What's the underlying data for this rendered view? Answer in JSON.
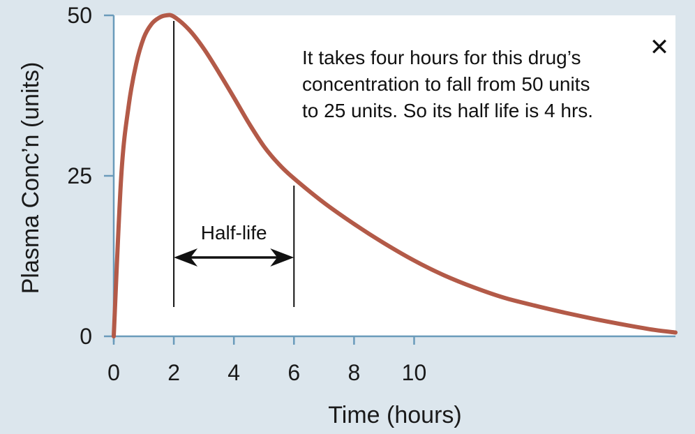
{
  "chart_data": {
    "type": "line",
    "title": "",
    "xlabel": "Time (hours)",
    "ylabel": "Plasma Conc’n (units)",
    "xlim": [
      0,
      18.7
    ],
    "ylim": [
      0,
      50
    ],
    "x_ticks": [
      0,
      2,
      4,
      6,
      8,
      10
    ],
    "x_tick_labels": [
      "0",
      "2",
      "4",
      "6",
      "8",
      "10"
    ],
    "y_ticks": [
      0,
      25,
      50
    ],
    "y_tick_labels": [
      "0",
      "25",
      "50"
    ],
    "grid": false,
    "series": [
      {
        "color": "#b35a48",
        "x": [
          0,
          0.25,
          0.5,
          0.75,
          1.0,
          1.25,
          1.5,
          1.75,
          2.0,
          2.5,
          3.0,
          3.5,
          4.0,
          4.5,
          5.0,
          5.5,
          6.0,
          7.0,
          8.0,
          9.0,
          10.0,
          11.0,
          12.0,
          13.0,
          14.0,
          15.0,
          16.0,
          17.0,
          18.0,
          18.7
        ],
        "y": [
          0,
          25,
          36,
          42.5,
          46.5,
          48.6,
          49.6,
          50,
          49.8,
          47.8,
          44.8,
          41.1,
          37.2,
          33.2,
          29.6,
          26.8,
          24.6,
          20.8,
          17.5,
          14.5,
          11.8,
          9.5,
          7.6,
          6.0,
          4.8,
          3.7,
          2.7,
          1.8,
          1.0,
          0.6
        ]
      }
    ],
    "annotations": {
      "half_life_label": "Half-life",
      "half_life_start": 2,
      "half_life_end": 6,
      "half_life_start_value": 50,
      "half_life_end_value": 25,
      "note_lines": [
        "It takes four hours for this drug’s",
        "concentration to fall from 50 units",
        "to 25 units. So its half life is 4 hrs."
      ]
    }
  },
  "controls": {
    "close_icon": "close-icon",
    "close_glyph": "✕"
  }
}
